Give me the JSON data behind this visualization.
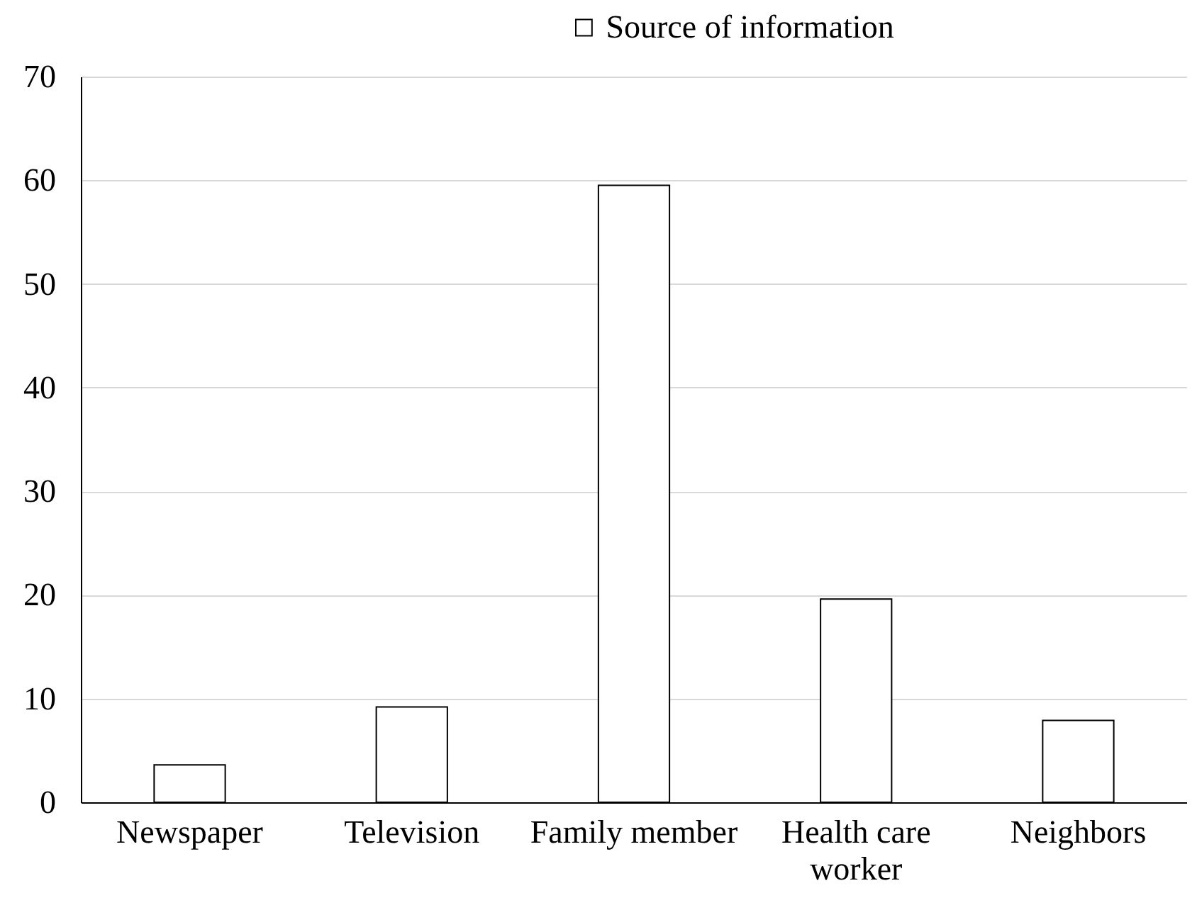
{
  "chart_data": {
    "type": "bar",
    "categories": [
      "Newspaper",
      "Television",
      "Family member",
      "Health care worker",
      "Neighbors"
    ],
    "series": [
      {
        "name": "Source of information",
        "color": "#ffffff",
        "values": [
          3.6,
          9.2,
          59.5,
          19.6,
          7.9
        ]
      }
    ],
    "ylim": [
      0,
      70
    ],
    "yticks": [
      0,
      10,
      20,
      30,
      40,
      50,
      60,
      70
    ],
    "grid": "y",
    "legend": "top"
  }
}
